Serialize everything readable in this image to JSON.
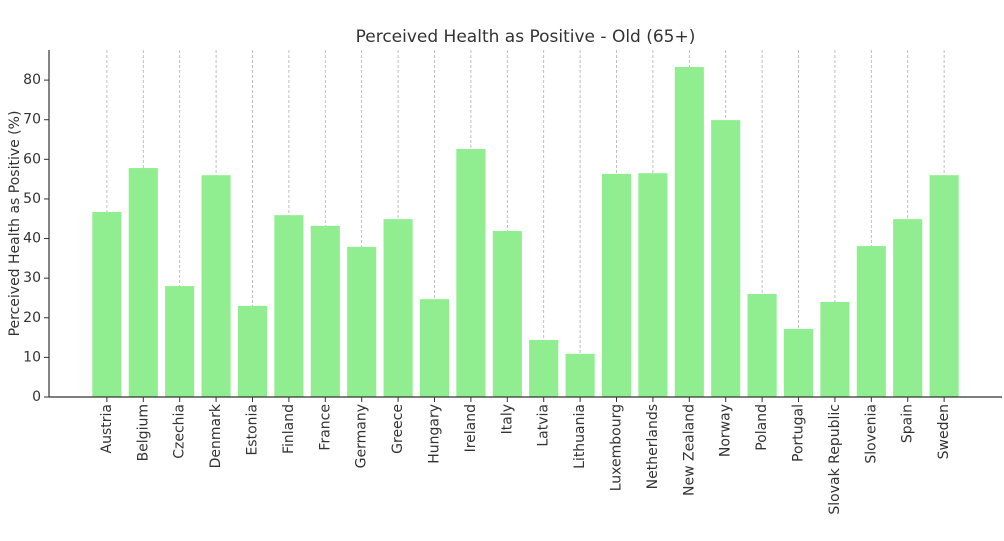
{
  "chart_data": {
    "type": "bar",
    "title": "Perceived Health as Positive - Old (65+)",
    "ylabel": "Perceived Health as Positive (%)",
    "categories": [
      "Austria",
      "Belgium",
      "Czechia",
      "Denmark",
      "Estonia",
      "Finland",
      "France",
      "Germany",
      "Greece",
      "Hungary",
      "Ireland",
      "Italy",
      "Latvia",
      "Lithuania",
      "Luxembourg",
      "Netherlands",
      "New Zealand",
      "Norway",
      "Poland",
      "Portugal",
      "Slovak Republic",
      "Slovenia",
      "Spain",
      "Sweden"
    ],
    "values": [
      46.7,
      57.8,
      28.0,
      56.0,
      23.0,
      45.9,
      43.2,
      37.9,
      44.9,
      24.7,
      62.6,
      41.9,
      14.4,
      10.9,
      56.3,
      56.5,
      83.3,
      69.9,
      26.0,
      17.2,
      24.0,
      38.1,
      44.9,
      56.0
    ],
    "ylim": [
      0,
      87.6
    ],
    "yticks": [
      0,
      10,
      20,
      30,
      40,
      50,
      60,
      70,
      80
    ],
    "grid": {
      "x": true,
      "y": false
    },
    "colors": {
      "bar": "#90ee90",
      "axis": "#333333",
      "grid": "#b0b0b0",
      "text": "#333333"
    }
  }
}
